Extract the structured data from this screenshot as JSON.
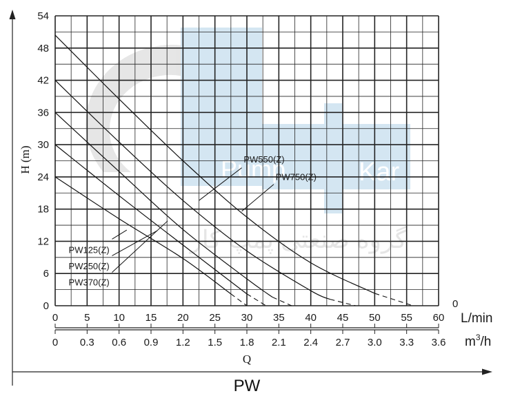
{
  "chart_data": {
    "type": "line",
    "title": "PW",
    "xlabel": "Q",
    "ylabel": "H (m)",
    "x_unit": "L/min",
    "x2_unit": "m3/h",
    "xlim": [
      0,
      60
    ],
    "ylim": [
      0,
      54
    ],
    "x_ticks": [
      "0",
      "5",
      "10",
      "15",
      "20",
      "25",
      "30",
      "35",
      "40",
      "45",
      "50",
      "55",
      "60"
    ],
    "x2_ticks": [
      "0",
      "0.3",
      "0.6",
      "0.9",
      "1.2",
      "1.5",
      "1.8",
      "2.1",
      "2.4",
      "2.7",
      "3.0",
      "3.3",
      "3.6"
    ],
    "y_ticks": [
      "0",
      "6",
      "12",
      "18",
      "24",
      "30",
      "36",
      "42",
      "48",
      "54"
    ],
    "corner_label": "0",
    "grid": true,
    "series": [
      {
        "name": "PW125(Z)",
        "solid": [
          [
            0,
            24
          ],
          [
            10,
            16.2
          ],
          [
            20,
            8.8
          ],
          [
            27.5,
            2.2
          ]
        ],
        "dashed": [
          [
            27.5,
            2.2
          ],
          [
            30,
            0
          ]
        ]
      },
      {
        "name": "PW250(Z)",
        "solid": [
          [
            0,
            30
          ],
          [
            10,
            20.5
          ],
          [
            20,
            11.3
          ],
          [
            30,
            2.2
          ]
        ],
        "dashed": [
          [
            30,
            2.2
          ],
          [
            33,
            0
          ]
        ]
      },
      {
        "name": "PW370(Z)",
        "solid": [
          [
            0,
            36
          ],
          [
            10,
            25
          ],
          [
            20,
            14.2
          ],
          [
            30,
            5
          ],
          [
            34,
            1.6
          ]
        ],
        "dashed": [
          [
            34,
            1.6
          ],
          [
            37,
            0
          ]
        ]
      },
      {
        "name": "PW550(Z)",
        "solid": [
          [
            0,
            42
          ],
          [
            10,
            30.5
          ],
          [
            20,
            19.6
          ],
          [
            30,
            10.2
          ],
          [
            40,
            2.8
          ],
          [
            43,
            1.2
          ]
        ],
        "dashed": [
          [
            43,
            1.2
          ],
          [
            47,
            0
          ]
        ]
      },
      {
        "name": "PW750(Z)",
        "solid": [
          [
            0,
            50.4
          ],
          [
            10,
            38.5
          ],
          [
            20,
            27
          ],
          [
            30,
            16.5
          ],
          [
            40,
            8
          ],
          [
            50,
            2.3
          ]
        ],
        "dashed": [
          [
            50,
            2.3
          ],
          [
            56,
            0
          ]
        ]
      }
    ],
    "labels": [
      {
        "text": "PW125(Z)",
        "at": [
          8.5,
          9.8
        ]
      },
      {
        "text": "PW250(Z)",
        "at": [
          8.5,
          6.8
        ]
      },
      {
        "text": "PW370(Z)",
        "at": [
          8.5,
          3.8
        ]
      },
      {
        "text": "PW550(Z)",
        "at": [
          29.5,
          26.7
        ]
      },
      {
        "text": "PW750(Z)",
        "at": [
          34.5,
          23.4
        ]
      }
    ],
    "leaders": [
      {
        "from": [
          8.9,
          12.4
        ],
        "to": [
          11.2,
          14.1
        ]
      },
      {
        "from": [
          8.9,
          9.3
        ],
        "to": [
          16,
          14
        ]
      },
      {
        "from": [
          8.9,
          6.2
        ],
        "to": [
          17.6,
          15.8
        ]
      },
      {
        "from": [
          29.2,
          25.7
        ],
        "to": [
          22.5,
          19.6
        ]
      },
      {
        "from": [
          34.2,
          22.6
        ],
        "to": [
          29.2,
          17.6
        ]
      }
    ]
  },
  "watermark": {
    "logo_text_left": "Pump",
    "logo_text_right": "Kar",
    "subtitle": "گروه صنعتی پمپ کار"
  }
}
